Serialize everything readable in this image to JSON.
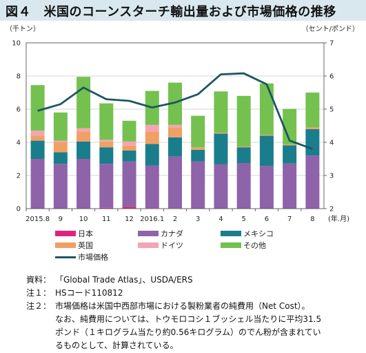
{
  "title": "図４　米国のコーンスターチ輸出量および市場価格の推移",
  "units": {
    "left": "（千トン）",
    "right": "（セント/ポンド）"
  },
  "x_unit_label": "(年.月)",
  "chart_data": {
    "type": "bar",
    "categories": [
      "2015.8",
      "9",
      "10",
      "11",
      "12",
      "2016.1",
      "2",
      "3",
      "4",
      "5",
      "6",
      "7",
      "8"
    ],
    "stacked": true,
    "ylim": [
      0,
      10
    ],
    "yticks": [
      0,
      2,
      4,
      6,
      8,
      10
    ],
    "y2lim": [
      2,
      7
    ],
    "y2ticks": [
      2,
      3,
      4,
      5,
      6,
      7
    ],
    "grid": true,
    "series": [
      {
        "name": "日本",
        "color": "#e0237a",
        "values": [
          0.02,
          0.02,
          0.02,
          0.05,
          0.1,
          0.03,
          0.03,
          0.02,
          0.02,
          0.02,
          0.02,
          0.02,
          0.02
        ]
      },
      {
        "name": "カナダ",
        "color": "#8e63a9",
        "values": [
          2.98,
          2.68,
          2.98,
          2.65,
          2.75,
          2.57,
          3.12,
          2.83,
          2.65,
          2.73,
          2.55,
          2.7,
          3.18
        ]
      },
      {
        "name": "メキシコ",
        "color": "#1a7d8c",
        "values": [
          1.1,
          0.7,
          1.05,
          1.0,
          0.65,
          1.3,
          1.15,
          0.7,
          1.85,
          0.95,
          1.83,
          1.1,
          1.6
        ]
      },
      {
        "name": "英国",
        "color": "#f0a064",
        "values": [
          0.3,
          0.6,
          0.6,
          0.35,
          0.3,
          0.75,
          0.6,
          0.15,
          0.05,
          0.05,
          0.05,
          0.05,
          0.1
        ]
      },
      {
        "name": "ドイツ",
        "color": "#f4a5b4",
        "values": [
          0.3,
          0.1,
          0.2,
          0.1,
          0.25,
          0.4,
          0.15,
          0.0,
          0.0,
          0.0,
          0.0,
          0.0,
          0.0
        ]
      },
      {
        "name": "その他",
        "color": "#74c150",
        "values": [
          2.75,
          1.7,
          3.1,
          2.2,
          1.25,
          2.05,
          2.55,
          1.9,
          2.5,
          3.05,
          3.1,
          2.15,
          2.1
        ]
      }
    ],
    "line": {
      "name": "市場価格",
      "color": "#1c5663",
      "axis": "right",
      "values": [
        4.95,
        5.15,
        5.65,
        5.3,
        5.25,
        5.05,
        5.2,
        5.45,
        6.05,
        6.08,
        5.75,
        4.05,
        3.8
      ]
    }
  },
  "notes": [
    {
      "key": "資料：",
      "text": "「Global Trade Atlas」、USDA/ERS"
    },
    {
      "key": "注１：",
      "text": "HSコード110812"
    },
    {
      "key": "注２：",
      "text": "市場価格は米国中西部市場における製粉業者の純費用（Net Cost）。"
    }
  ],
  "note_continuation": [
    "なお、純費用については、トウモロコシ１ブッシェル当たりに平均31.5",
    "ポンド（１キログラム当たり約0.56キログラム）のでん粉が含まれてい",
    "るものとして、計算されている。"
  ]
}
